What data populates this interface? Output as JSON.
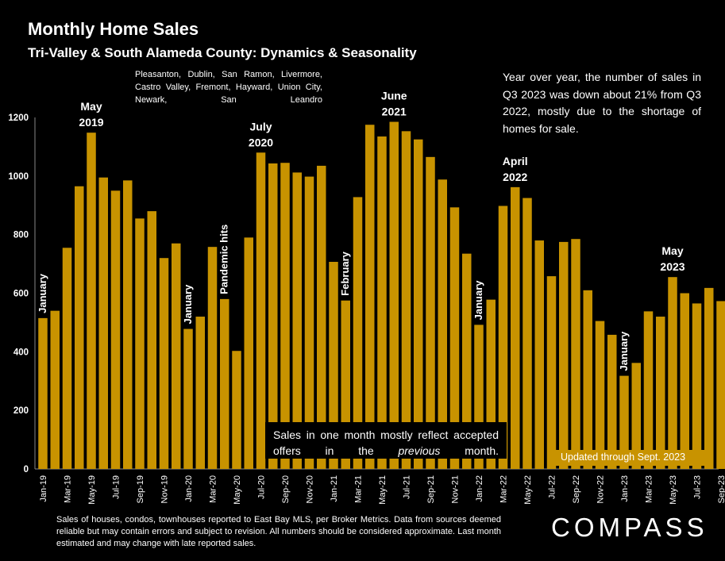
{
  "header": {
    "title": "Monthly Home Sales",
    "subtitle": "Tri-Valley & South Alameda County: Dynamics & Seasonality",
    "region": "Pleasanton, Dublin, San Ramon, Livermore, Castro Valley, Fremont, Hayward, Union City, Newark, San Leandro"
  },
  "callout": "Year over year, the number of sales in Q3 2023 was down about 21% from Q3 2022, mostly due to the shortage of homes for sale.",
  "note": {
    "part1": "Sales in one month mostly reflect accepted offers in the ",
    "emph": "previous",
    "part2": " month."
  },
  "updated": "Updated through Sept. 2023",
  "footer": "Sales of houses, condos, townhouses reported to East Bay MLS, per Broker Metrics. Data from sources deemed reliable but may contain errors and subject to revision. All numbers should be considered approximate.  Last month estimated and may change with late reported sales.",
  "logo": "COMPASS",
  "colors": {
    "bar": "#c89300",
    "background": "#000000",
    "text": "#ffffff",
    "updated_box": "#c89300"
  },
  "chart_data": {
    "type": "bar",
    "ylim": [
      0,
      1200
    ],
    "yticks": [
      0,
      200,
      400,
      600,
      800,
      1000,
      1200
    ],
    "grid": false,
    "categories": [
      "Jan-19",
      "Feb-19",
      "Mar-19",
      "Apr-19",
      "May-19",
      "Jun-19",
      "Jul-19",
      "Aug-19",
      "Sep-19",
      "Oct-19",
      "Nov-19",
      "Dec-19",
      "Jan-20",
      "Feb-20",
      "Mar-20",
      "Apr-20",
      "May-20",
      "Jun-20",
      "Jul-20",
      "Aug-20",
      "Sep-20",
      "Oct-20",
      "Nov-20",
      "Dec-20",
      "Jan-21",
      "Feb-21",
      "Mar-21",
      "Apr-21",
      "May-21",
      "Jun-21",
      "Jul-21",
      "Aug-21",
      "Sep-21",
      "Oct-21",
      "Nov-21",
      "Dec-21",
      "Jan-22",
      "Feb-22",
      "Mar-22",
      "Apr-22",
      "May-22",
      "Jun-22",
      "Jul-22",
      "Aug-22",
      "Sep-22",
      "Oct-22",
      "Nov-22",
      "Dec-22",
      "Jan-23",
      "Feb-23",
      "Mar-23",
      "Apr-23",
      "May-23",
      "Jun-23",
      "Jul-23",
      "Aug-23",
      "Sep-23"
    ],
    "visible_tick_labels": [
      "Jan-19",
      "Mar-19",
      "May-19",
      "Jul-19",
      "Sep-19",
      "Nov-19",
      "Jan-20",
      "Mar-20",
      "May-20",
      "Jul-20",
      "Sep-20",
      "Nov-20",
      "Jan-21",
      "Mar-21",
      "May-21",
      "Jul-21",
      "Sep-21",
      "Nov-21",
      "Jan-22",
      "Mar-22",
      "May-22",
      "Jul-22",
      "Sep-22",
      "Nov-22",
      "Jan-23",
      "Mar-23",
      "May-23",
      "Jul-23",
      "Sep-23"
    ],
    "values": [
      515,
      540,
      755,
      965,
      1148,
      995,
      950,
      985,
      855,
      880,
      720,
      770,
      478,
      520,
      758,
      580,
      403,
      790,
      1080,
      1043,
      1045,
      1012,
      998,
      1035,
      707,
      575,
      928,
      1175,
      1135,
      1185,
      1153,
      1125,
      1065,
      988,
      893,
      735,
      492,
      578,
      898,
      962,
      925,
      780,
      658,
      775,
      785,
      610,
      505,
      458,
      318,
      362,
      538,
      520,
      655,
      600,
      565,
      618,
      573
    ],
    "annotations": [
      {
        "label": "January",
        "category": "Jan-19",
        "rotated": true
      },
      {
        "label": "May\n2019",
        "category": "May-19",
        "rotated": false
      },
      {
        "label": "January",
        "category": "Jan-20",
        "rotated": true
      },
      {
        "label": "Pandemic hits",
        "category": "Apr-20",
        "rotated": true
      },
      {
        "label": "July\n2020",
        "category": "Jul-20",
        "rotated": false
      },
      {
        "label": "February",
        "category": "Feb-21",
        "rotated": true
      },
      {
        "label": "June\n2021",
        "category": "Jun-21",
        "rotated": false
      },
      {
        "label": "January",
        "category": "Jan-22",
        "rotated": true
      },
      {
        "label": "April\n2022",
        "category": "Apr-22",
        "rotated": false
      },
      {
        "label": "January",
        "category": "Jan-23",
        "rotated": true
      },
      {
        "label": "May\n2023",
        "category": "May-23",
        "rotated": false
      }
    ]
  }
}
